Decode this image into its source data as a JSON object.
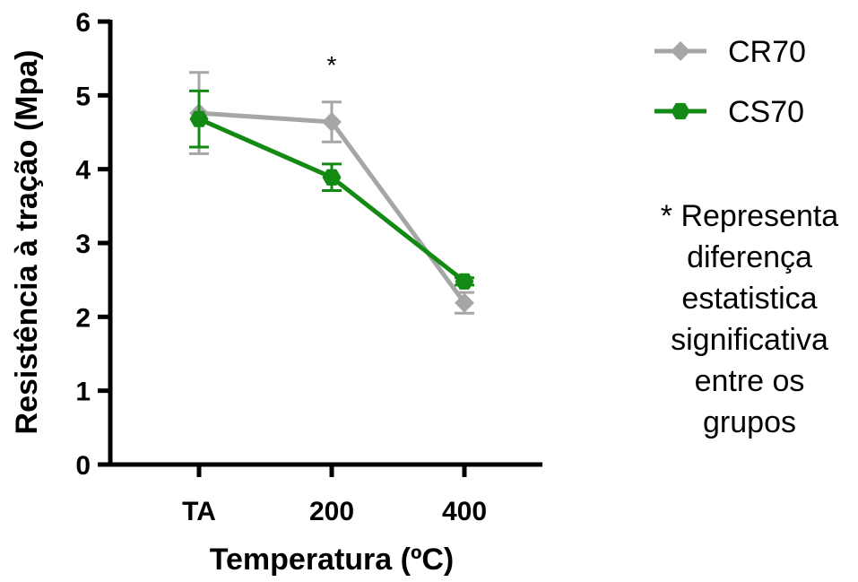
{
  "chart_data": {
    "type": "line",
    "xlabel": "Temperatura (ºC)",
    "ylabel": "Resistência à tração (Mpa)",
    "ylim": [
      0,
      6
    ],
    "yticks": [
      "0",
      "1",
      "2",
      "3",
      "4",
      "5",
      "6"
    ],
    "categories": [
      "TA",
      "200",
      "400"
    ],
    "series": [
      {
        "name": "CR70",
        "color": "#a6a6a6",
        "marker": "diamond",
        "values": [
          4.76,
          4.64,
          2.19
        ],
        "errors": [
          0.55,
          0.27,
          0.14
        ]
      },
      {
        "name": "CS70",
        "color": "#138a13",
        "marker": "hexagon",
        "values": [
          4.68,
          3.89,
          2.48
        ],
        "errors": [
          0.38,
          0.18,
          0.05
        ]
      }
    ],
    "annotations": [
      {
        "category": "200",
        "text": "*"
      }
    ],
    "note_lines": [
      "* Representa",
      "diferença",
      "estatistica",
      "significativa",
      "entre os",
      "grupos"
    ],
    "legend_position": "top-right"
  }
}
